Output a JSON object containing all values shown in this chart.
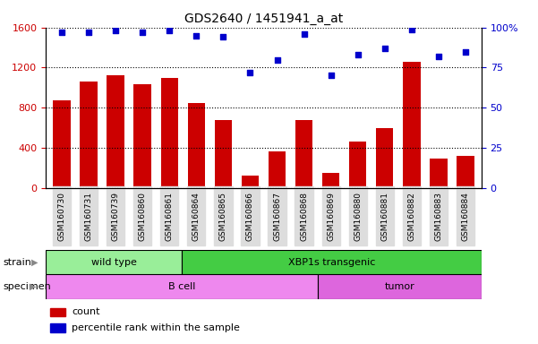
{
  "title": "GDS2640 / 1451941_a_at",
  "samples": [
    "GSM160730",
    "GSM160731",
    "GSM160739",
    "GSM160860",
    "GSM160861",
    "GSM160864",
    "GSM160865",
    "GSM160866",
    "GSM160867",
    "GSM160868",
    "GSM160869",
    "GSM160880",
    "GSM160881",
    "GSM160882",
    "GSM160883",
    "GSM160884"
  ],
  "counts": [
    870,
    1060,
    1120,
    1030,
    1100,
    850,
    680,
    120,
    360,
    680,
    150,
    460,
    600,
    1260,
    290,
    320
  ],
  "percentiles": [
    97,
    97,
    98,
    97,
    98,
    95,
    94,
    72,
    80,
    96,
    70,
    83,
    87,
    99,
    82,
    85
  ],
  "ylim_left": [
    0,
    1600
  ],
  "ylim_right": [
    0,
    100
  ],
  "yticks_left": [
    0,
    400,
    800,
    1200,
    1600
  ],
  "yticks_right": [
    0,
    25,
    50,
    75,
    100
  ],
  "bar_color": "#cc0000",
  "dot_color": "#0000cc",
  "strain_groups": [
    {
      "label": "wild type",
      "start": 0,
      "end": 5,
      "color": "#99ee99"
    },
    {
      "label": "XBP1s transgenic",
      "start": 5,
      "end": 16,
      "color": "#44cc44"
    }
  ],
  "specimen_groups": [
    {
      "label": "B cell",
      "start": 0,
      "end": 10,
      "color": "#ee88ee"
    },
    {
      "label": "tumor",
      "start": 10,
      "end": 16,
      "color": "#dd66dd"
    }
  ],
  "legend_count_label": "count",
  "legend_pct_label": "percentile rank within the sample",
  "strain_label": "strain",
  "specimen_label": "specimen",
  "background_color": "#ffffff"
}
